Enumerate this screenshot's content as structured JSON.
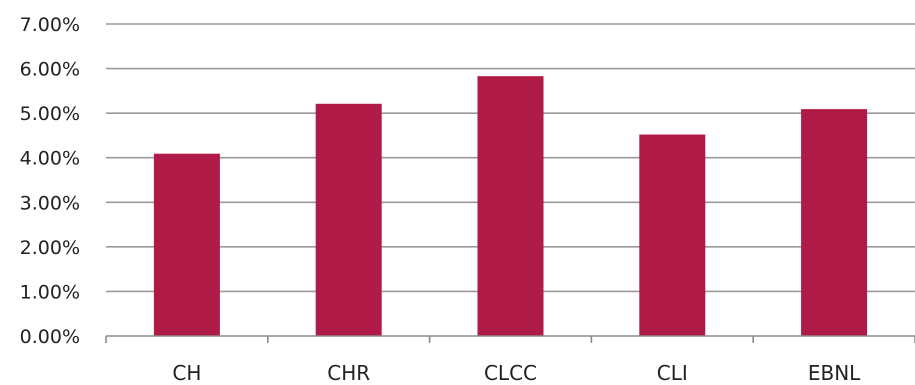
{
  "chart_data": {
    "type": "bar",
    "title": "",
    "xlabel": "",
    "ylabel": "",
    "categories": [
      "CH",
      "CHR",
      "CLCC",
      "CLI",
      "EBNL"
    ],
    "values": [
      0.0409,
      0.0521,
      0.0583,
      0.0452,
      0.0509
    ],
    "ylim": [
      0,
      0.07
    ],
    "y_ticks": [
      0,
      0.01,
      0.02,
      0.03,
      0.04,
      0.05,
      0.06,
      0.07
    ],
    "y_tick_labels": [
      "0.00%",
      "1.00%",
      "2.00%",
      "3.00%",
      "4.00%",
      "5.00%",
      "6.00%",
      "7.00%"
    ],
    "grid": true,
    "legend": "none",
    "bar_color": "#b01a47"
  }
}
